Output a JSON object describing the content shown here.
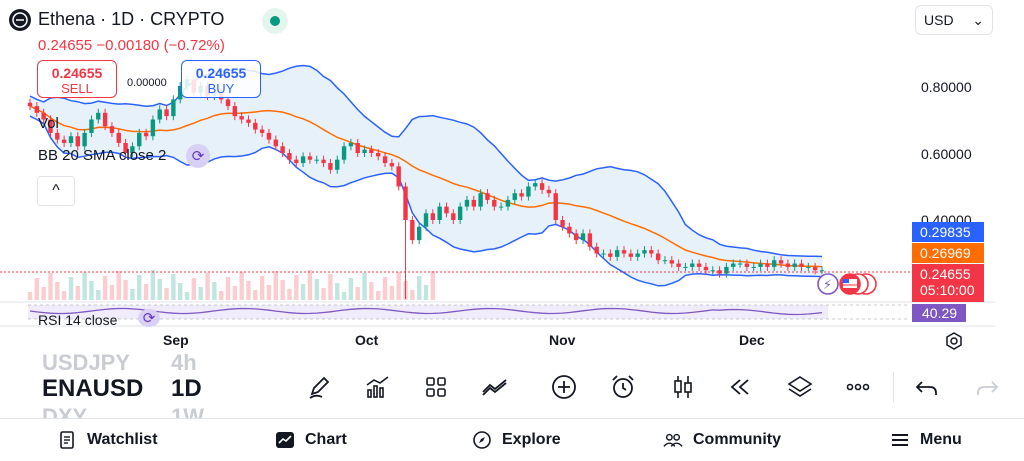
{
  "header": {
    "symbol_name": "Ethena",
    "interval": "1D",
    "exchange": "CRYPTO",
    "title_sep": " · ",
    "last_price": "0.24655",
    "change": "−0.00180",
    "change_pct": "(−0.72%)",
    "currency": "USD",
    "currency_chevron": "⌄",
    "market_status_color": "#089981"
  },
  "trade": {
    "sell_price": "0.24655",
    "sell_label": "SELL",
    "spread": "0.00000",
    "buy_price": "0.24655",
    "buy_label": "BUY"
  },
  "indicators": {
    "vol_label": "Vol",
    "bb_label": "BB 20 SMA close 2",
    "rsi_label": "RSI 14 close",
    "rsi_value": "40.29",
    "collapse_glyph": "^"
  },
  "price_axis": {
    "labels": [
      "0.80000",
      "0.60000",
      "0.40000"
    ],
    "upper_band_value": "0.29835",
    "basis_value": "0.26969",
    "last_value": "0.24655",
    "countdown": "05:10:00"
  },
  "time_axis": {
    "labels": [
      "Sep",
      "Oct",
      "Nov",
      "Dec"
    ]
  },
  "colors": {
    "up": "#089981",
    "down": "#f23645",
    "band": "#2962ff",
    "basis": "#ff6d00",
    "band_fill": "#e3effa",
    "rsi": "#7e57c2"
  },
  "chart_data": {
    "type": "candlestick",
    "x_labels": [
      "Sep",
      "Oct",
      "Nov",
      "Dec"
    ],
    "ylim": [
      0.22,
      0.86
    ],
    "yticks": [
      0.8,
      0.6,
      0.4
    ],
    "close_approx": [
      0.74,
      0.72,
      0.7,
      0.66,
      0.64,
      0.63,
      0.65,
      0.62,
      0.66,
      0.7,
      0.72,
      0.68,
      0.66,
      0.63,
      0.6,
      0.62,
      0.66,
      0.65,
      0.7,
      0.73,
      0.71,
      0.76,
      0.8,
      0.82,
      0.78,
      0.8,
      0.77,
      0.78,
      0.76,
      0.74,
      0.71,
      0.7,
      0.69,
      0.67,
      0.66,
      0.64,
      0.62,
      0.6,
      0.58,
      0.57,
      0.59,
      0.58,
      0.58,
      0.57,
      0.55,
      0.58,
      0.62,
      0.63,
      0.6,
      0.61,
      0.6,
      0.59,
      0.57,
      0.56,
      0.5,
      0.4,
      0.34,
      0.38,
      0.42,
      0.4,
      0.44,
      0.42,
      0.4,
      0.44,
      0.46,
      0.44,
      0.48,
      0.46,
      0.44,
      0.44,
      0.46,
      0.48,
      0.47,
      0.5,
      0.51,
      0.49,
      0.48,
      0.4,
      0.38,
      0.36,
      0.34,
      0.36,
      0.32,
      0.3,
      0.3,
      0.29,
      0.31,
      0.3,
      0.29,
      0.3,
      0.31,
      0.3,
      0.28,
      0.28,
      0.27,
      0.26,
      0.26,
      0.27,
      0.26,
      0.25,
      0.25,
      0.24,
      0.26,
      0.27,
      0.27,
      0.26,
      0.26,
      0.27,
      0.26,
      0.28,
      0.27,
      0.26,
      0.27,
      0.26,
      0.26,
      0.25,
      0.25
    ],
    "bb_upper_last": 0.29835,
    "bb_basis_last": 0.26969,
    "last_close": 0.24655,
    "rsi_last": 40.29,
    "series": [
      {
        "name": "Vol"
      },
      {
        "name": "BB 20 SMA close 2"
      },
      {
        "name": "RSI 14 close"
      }
    ]
  },
  "watchlist_faded": {
    "prev_symbol": "USDJPY",
    "prev_tf": "4h",
    "next_symbol": "DXY",
    "next_tf": "1W"
  },
  "symbol_bar": {
    "symbol": "ENAUSD",
    "timeframe": "1D"
  },
  "toolbar": {
    "icons": [
      "pencil-icon",
      "indicators-icon",
      "layouts-icon",
      "compare-icon",
      "add-icon",
      "alert-icon",
      "candles-icon",
      "replay-icon",
      "layers-icon",
      "more-icon",
      "undo-icon",
      "redo-icon"
    ]
  },
  "bottom_nav": {
    "watchlist": "Watchlist",
    "chart": "Chart",
    "explore": "Explore",
    "community": "Community",
    "menu": "Menu"
  }
}
